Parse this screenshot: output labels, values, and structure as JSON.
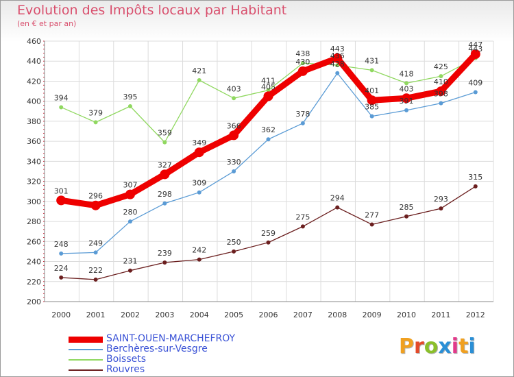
{
  "title": "Evolution des Impôts locaux par Habitant",
  "subtitle": "(en € et par an)",
  "logo": {
    "text": "Proxiti",
    "colors": [
      "#f0a020",
      "#e34a2a",
      "#8abf2b",
      "#2a8fd6",
      "#e23a8a",
      "#f0a020",
      "#2a8fd6"
    ]
  },
  "chart_data": {
    "type": "line",
    "x": [
      "2000",
      "2001",
      "2002",
      "2003",
      "2004",
      "2005",
      "2006",
      "2007",
      "2008",
      "2009",
      "2010",
      "2011",
      "2012"
    ],
    "ylim": [
      200,
      460
    ],
    "yticks": [
      "200",
      "220",
      "240",
      "260",
      "280",
      "300",
      "320",
      "340",
      "360",
      "380",
      "400",
      "420",
      "440",
      "460"
    ],
    "grid": true,
    "legend_position": "bottom-left",
    "series": [
      {
        "name": "SAINT-OUEN-MARCHEFROY",
        "color": "#ee0000",
        "values": [
          301,
          296,
          307,
          327,
          349,
          366,
          405,
          430,
          443,
          401,
          403,
          410,
          447
        ],
        "labels": [
          "301",
          "296",
          "307",
          "327",
          "349",
          "366",
          "405",
          "430",
          "443",
          "401",
          "403",
          "410",
          "447"
        ]
      },
      {
        "name": "Berchères-sur-Vesgre",
        "color": "#5a9bd5",
        "values": [
          248,
          249,
          280,
          298,
          309,
          330,
          362,
          378,
          428,
          385,
          391,
          398,
          409
        ],
        "labels": [
          "248",
          "249",
          "280",
          "298",
          "309",
          "330",
          "362",
          "378",
          "428",
          "385",
          "391",
          "398",
          "409"
        ]
      },
      {
        "name": "Boissets",
        "color": "#90d860",
        "values": [
          394,
          379,
          395,
          359,
          421,
          403,
          411,
          438,
          436,
          431,
          418,
          425,
          443
        ],
        "labels": [
          "394",
          "379",
          "395",
          "359",
          "421",
          "403",
          "411",
          "438",
          "436",
          "431",
          "418",
          "425",
          "443"
        ]
      },
      {
        "name": "Rouvres",
        "color": "#6b1f1f",
        "values": [
          224,
          222,
          231,
          239,
          242,
          250,
          259,
          275,
          294,
          277,
          285,
          293,
          315
        ],
        "labels": [
          "224",
          "222",
          "231",
          "239",
          "242",
          "250",
          "259",
          "275",
          "294",
          "277",
          "285",
          "293",
          "315"
        ]
      }
    ]
  }
}
